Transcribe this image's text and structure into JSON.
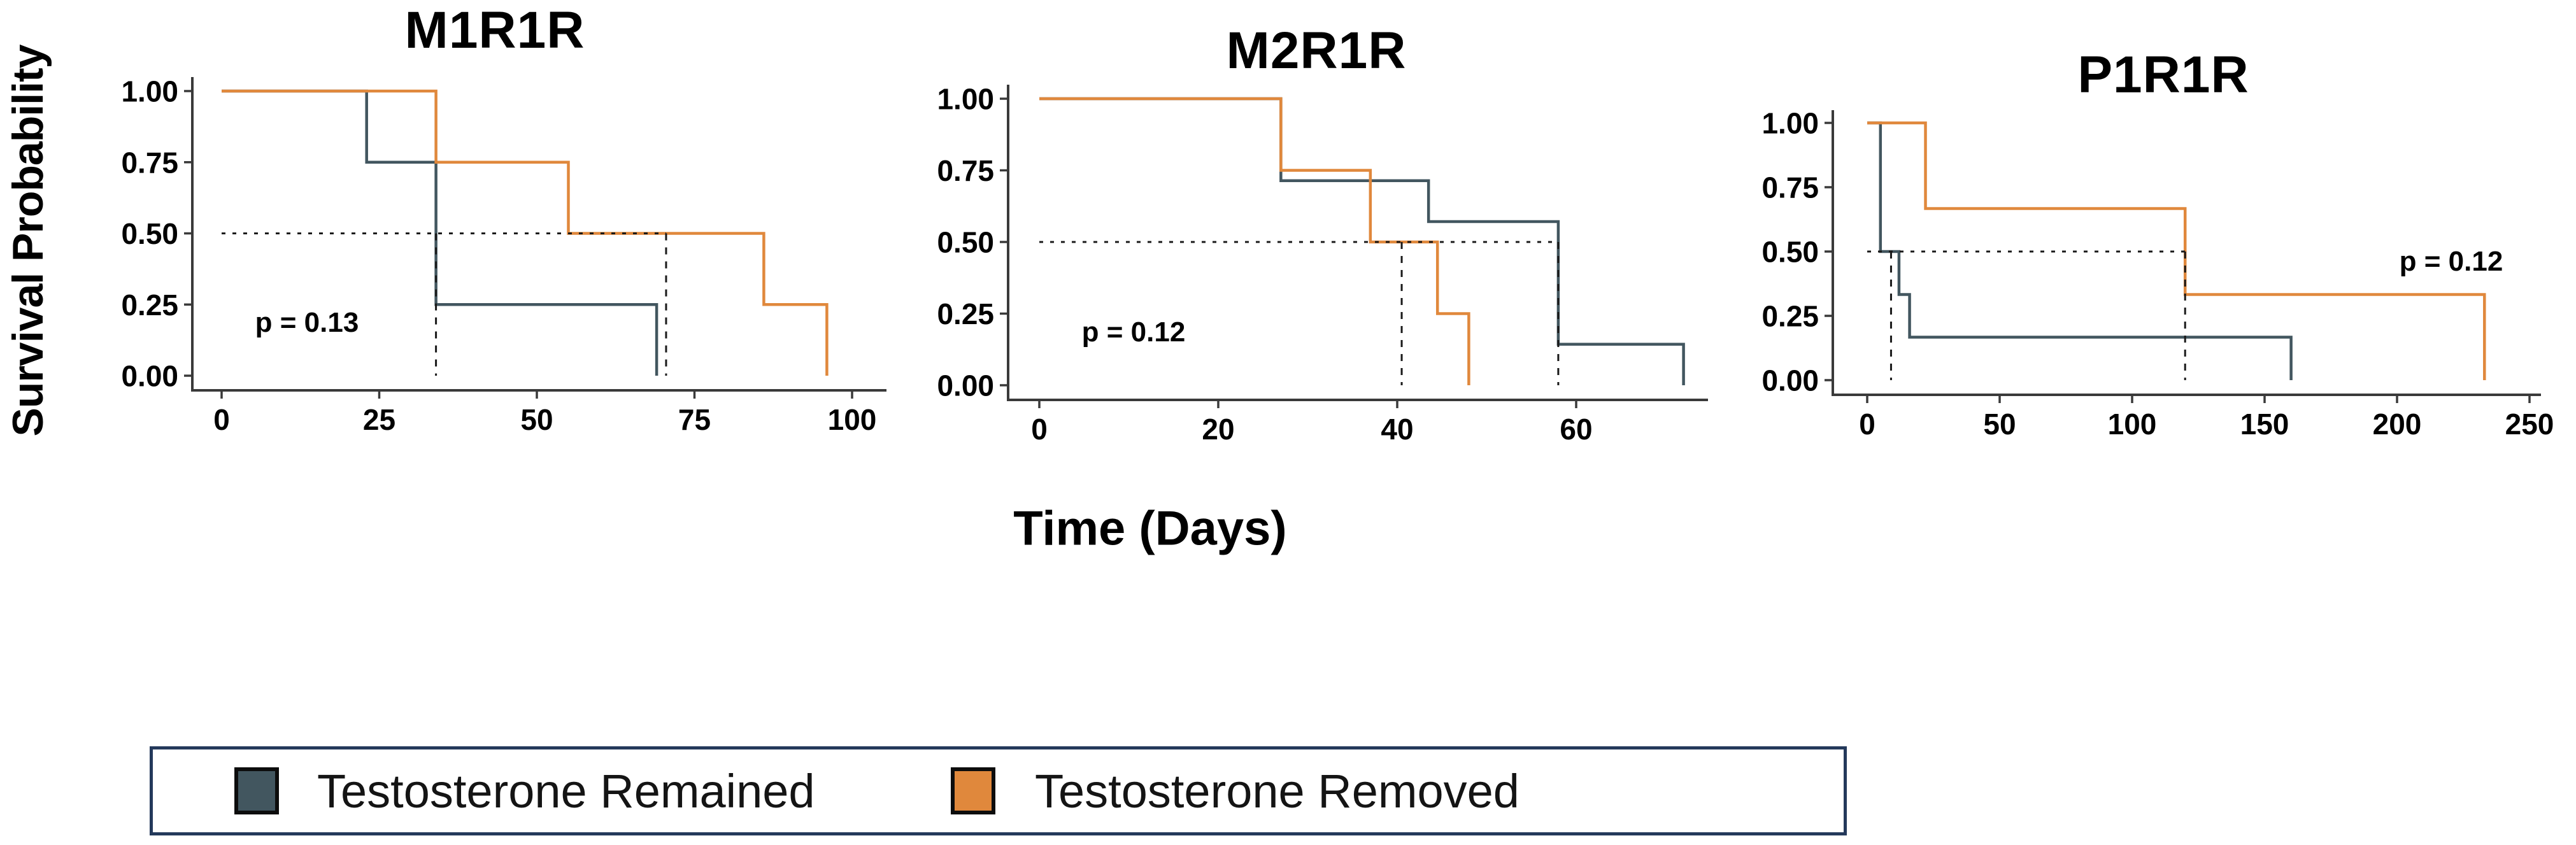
{
  "figure": {
    "y_axis_label": "Survival Probability",
    "x_axis_label": "Time (Days)",
    "colors": {
      "remained": "#42565F",
      "removed": "#E0883C",
      "axis": "#3A3A3A",
      "median_dash": "#1A1A1A",
      "legend_border": "#24395B",
      "background": "#FFFFFF"
    },
    "legend": {
      "position": "bottom",
      "items": [
        {
          "label": "Testosterone Remained",
          "color": "#42565F"
        },
        {
          "label": "Testosterone Removed",
          "color": "#E0883C"
        }
      ]
    }
  },
  "chart_data": [
    {
      "type": "line",
      "subtype": "kaplan-meier-step",
      "title": "M1R1R",
      "p_value_label": "p = 0.13",
      "xlim": [
        0,
        105
      ],
      "ylim": [
        0,
        1
      ],
      "grid": false,
      "x_ticks": [
        {
          "v": 0,
          "label": "0"
        },
        {
          "v": 25,
          "label": "25"
        },
        {
          "v": 50,
          "label": "50"
        },
        {
          "v": 75,
          "label": "75"
        },
        {
          "v": 100,
          "label": "100"
        }
      ],
      "y_ticks": [
        {
          "v": 1,
          "label": "1.00"
        },
        {
          "v": 0.75,
          "label": "0.75"
        },
        {
          "v": 0.5,
          "label": "0.50"
        },
        {
          "v": 0.25,
          "label": "0.25"
        },
        {
          "v": 0,
          "label": "0.00"
        }
      ],
      "series": [
        {
          "name": "Testosterone Remained",
          "color": "#42565F",
          "points": [
            [
              0,
              1
            ],
            [
              23,
              1
            ],
            [
              23,
              0.75
            ],
            [
              34,
              0.75
            ],
            [
              34,
              0.25
            ],
            [
              69,
              0.25
            ],
            [
              69,
              0
            ]
          ]
        },
        {
          "name": "Testosterone Removed",
          "color": "#E0883C",
          "points": [
            [
              0,
              1
            ],
            [
              34,
              1
            ],
            [
              34,
              0.75
            ],
            [
              55,
              0.75
            ],
            [
              55,
              0.5
            ],
            [
              86,
              0.5
            ],
            [
              86,
              0.25
            ],
            [
              96,
              0.25
            ],
            [
              96,
              0
            ]
          ]
        }
      ],
      "median_lines": {
        "horizontal": {
          "y": 0.5,
          "from_x": 0,
          "to_x": 70.5
        },
        "verticals": [
          {
            "x": 34,
            "from_y": 0.5,
            "to_y": 0
          },
          {
            "x": 70.5,
            "from_y": 0.5,
            "to_y": 0
          }
        ]
      }
    },
    {
      "type": "line",
      "subtype": "kaplan-meier-step",
      "title": "M2R1R",
      "p_value_label": "p = 0.12",
      "xlim": [
        0,
        74
      ],
      "ylim": [
        0,
        1
      ],
      "grid": false,
      "x_ticks": [
        {
          "v": 0,
          "label": "0"
        },
        {
          "v": 20,
          "label": "20"
        },
        {
          "v": 40,
          "label": "40"
        },
        {
          "v": 60,
          "label": "60"
        }
      ],
      "y_ticks": [
        {
          "v": 1,
          "label": "1.00"
        },
        {
          "v": 0.75,
          "label": "0.75"
        },
        {
          "v": 0.5,
          "label": "0.50"
        },
        {
          "v": 0.25,
          "label": "0.25"
        },
        {
          "v": 0,
          "label": "0.00"
        }
      ],
      "series": [
        {
          "name": "Testosterone Remained",
          "color": "#42565F",
          "points": [
            [
              0,
              1
            ],
            [
              27,
              1
            ],
            [
              27,
              0.714
            ],
            [
              43.5,
              0.714
            ],
            [
              43.5,
              0.571
            ],
            [
              58,
              0.571
            ],
            [
              58,
              0.143
            ],
            [
              72,
              0.143
            ],
            [
              72,
              0
            ]
          ]
        },
        {
          "name": "Testosterone Removed",
          "color": "#E0883C",
          "points": [
            [
              0,
              1
            ],
            [
              27,
              1
            ],
            [
              27,
              0.75
            ],
            [
              37,
              0.75
            ],
            [
              37,
              0.5
            ],
            [
              44.5,
              0.5
            ],
            [
              44.5,
              0.25
            ],
            [
              48,
              0.25
            ],
            [
              48,
              0
            ]
          ]
        }
      ],
      "median_lines": {
        "horizontal": {
          "y": 0.5,
          "from_x": 0,
          "to_x": 58
        },
        "verticals": [
          {
            "x": 40.5,
            "from_y": 0.5,
            "to_y": 0
          },
          {
            "x": 58,
            "from_y": 0.5,
            "to_y": 0
          }
        ]
      }
    },
    {
      "type": "line",
      "subtype": "kaplan-meier-step",
      "title": "P1R1R",
      "p_value_label": "p = 0.12",
      "xlim": [
        0,
        254
      ],
      "ylim": [
        0,
        1
      ],
      "grid": false,
      "x_ticks": [
        {
          "v": 0,
          "label": "0"
        },
        {
          "v": 50,
          "label": "50"
        },
        {
          "v": 100,
          "label": "100"
        },
        {
          "v": 150,
          "label": "150"
        },
        {
          "v": 200,
          "label": "200"
        },
        {
          "v": 250,
          "label": "250"
        }
      ],
      "y_ticks": [
        {
          "v": 1,
          "label": "1.00"
        },
        {
          "v": 0.75,
          "label": "0.75"
        },
        {
          "v": 0.5,
          "label": "0.50"
        },
        {
          "v": 0.25,
          "label": "0.25"
        },
        {
          "v": 0,
          "label": "0.00"
        }
      ],
      "series": [
        {
          "name": "Testosterone Remained",
          "color": "#42565F",
          "points": [
            [
              0,
              1
            ],
            [
              5,
              1
            ],
            [
              5,
              0.5
            ],
            [
              12,
              0.5
            ],
            [
              12,
              0.333
            ],
            [
              16,
              0.333
            ],
            [
              16,
              0.167
            ],
            [
              160,
              0.167
            ],
            [
              160,
              0
            ]
          ]
        },
        {
          "name": "Testosterone Removed",
          "color": "#E0883C",
          "points": [
            [
              0,
              1
            ],
            [
              22,
              1
            ],
            [
              22,
              0.667
            ],
            [
              120,
              0.667
            ],
            [
              120,
              0.333
            ],
            [
              233,
              0.333
            ],
            [
              233,
              0
            ]
          ]
        }
      ],
      "median_lines": {
        "horizontal": {
          "y": 0.5,
          "from_x": 0,
          "to_x": 120
        },
        "verticals": [
          {
            "x": 9,
            "from_y": 0.5,
            "to_y": 0
          },
          {
            "x": 120,
            "from_y": 0.5,
            "to_y": 0
          }
        ]
      }
    }
  ]
}
